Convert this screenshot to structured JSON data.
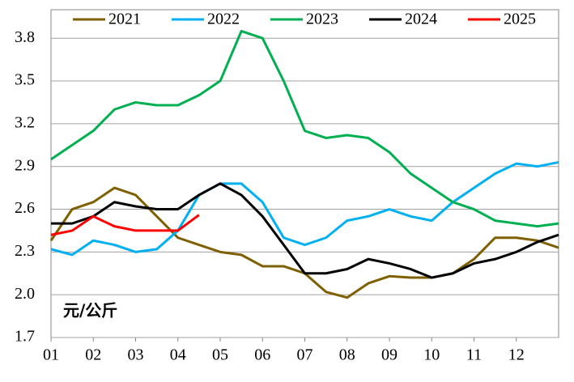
{
  "chart_data": {
    "type": "line",
    "annotation": "元/公斤",
    "x": [
      1,
      1.5,
      2,
      2.5,
      3,
      3.5,
      4,
      4.5,
      5,
      5.5,
      6,
      6.5,
      7,
      7.5,
      8,
      8.5,
      9,
      9.5,
      10,
      10.5,
      11,
      11.5,
      12,
      12.5,
      13
    ],
    "xlim": [
      1,
      13
    ],
    "xticks": [
      {
        "value": 1,
        "label": "01"
      },
      {
        "value": 2,
        "label": "02"
      },
      {
        "value": 3,
        "label": "03"
      },
      {
        "value": 4,
        "label": "04"
      },
      {
        "value": 5,
        "label": "05"
      },
      {
        "value": 6,
        "label": "06"
      },
      {
        "value": 7,
        "label": "07"
      },
      {
        "value": 8,
        "label": "08"
      },
      {
        "value": 9,
        "label": "09"
      },
      {
        "value": 10,
        "label": "10"
      },
      {
        "value": 11,
        "label": "11"
      },
      {
        "value": 12,
        "label": "12"
      }
    ],
    "ylim": [
      1.7,
      4.0
    ],
    "yticks": [
      1.7,
      {
        "value": 2.0,
        "label": "2.0"
      },
      2.3,
      2.6,
      2.9,
      3.2,
      3.5,
      3.8
    ],
    "grid": true,
    "series": [
      {
        "name": "2021",
        "color": "#7f6000",
        "values": [
          2.38,
          2.6,
          2.65,
          2.75,
          2.7,
          2.55,
          2.4,
          2.35,
          2.3,
          2.28,
          2.2,
          2.2,
          2.15,
          2.02,
          1.98,
          2.08,
          2.13,
          2.12,
          2.12,
          2.15,
          2.25,
          2.4,
          2.4,
          2.38,
          2.33
        ]
      },
      {
        "name": "2022",
        "color": "#00b0f0",
        "values": [
          2.32,
          2.28,
          2.38,
          2.35,
          2.3,
          2.32,
          2.45,
          2.7,
          2.78,
          2.78,
          2.65,
          2.4,
          2.35,
          2.4,
          2.52,
          2.55,
          2.6,
          2.55,
          2.52,
          2.65,
          2.75,
          2.85,
          2.92,
          2.9,
          2.93
        ]
      },
      {
        "name": "2023",
        "color": "#00b050",
        "values": [
          2.95,
          3.05,
          3.15,
          3.3,
          3.35,
          3.33,
          3.33,
          3.4,
          3.5,
          3.85,
          3.8,
          3.5,
          3.15,
          3.1,
          3.12,
          3.1,
          3.0,
          2.85,
          2.75,
          2.65,
          2.6,
          2.52,
          2.5,
          2.48,
          2.5
        ]
      },
      {
        "name": "2024",
        "color": "#000000",
        "values": [
          2.5,
          2.5,
          2.55,
          2.65,
          2.62,
          2.6,
          2.6,
          2.7,
          2.78,
          2.7,
          2.55,
          2.35,
          2.15,
          2.15,
          2.18,
          2.25,
          2.22,
          2.18,
          2.12,
          2.15,
          2.22,
          2.25,
          2.3,
          2.37,
          2.42
        ]
      },
      {
        "name": "2025",
        "color": "#ff0000",
        "values": [
          2.42,
          2.45,
          2.55,
          2.48,
          2.45,
          2.45,
          2.45,
          2.56,
          null,
          null,
          null,
          null,
          null,
          null,
          null,
          null,
          null,
          null,
          null,
          null,
          null,
          null,
          null,
          null,
          null
        ]
      }
    ]
  }
}
